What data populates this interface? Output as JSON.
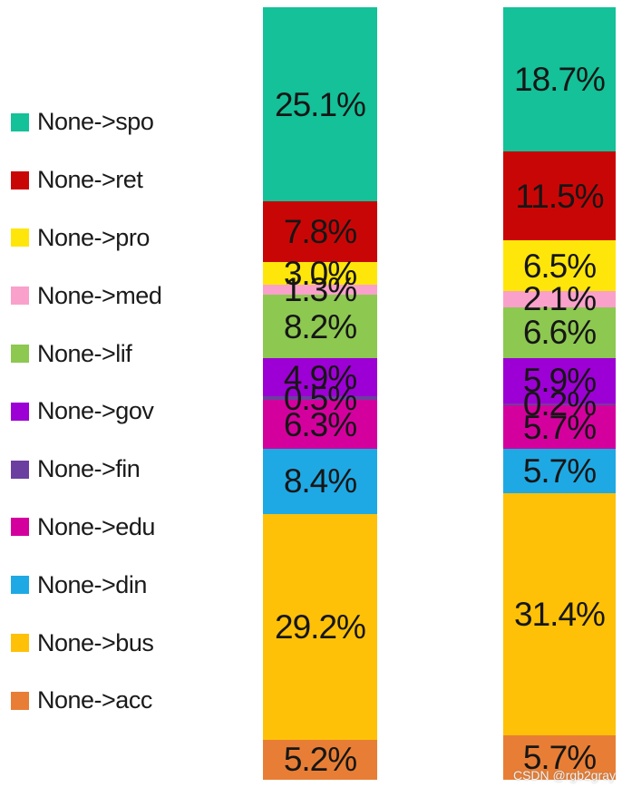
{
  "watermark": {
    "text": "CSDN @rgb2gray"
  },
  "chart_data": {
    "type": "bar",
    "stacked": true,
    "orientation": "vertical",
    "unit": "%",
    "title": "",
    "xlabel": "",
    "ylabel": "",
    "axes_visible": false,
    "grid": false,
    "legend_position": "left",
    "stack_order": "top-to-bottom as listed",
    "categories": [
      "left-bar",
      "right-bar"
    ],
    "series": [
      {
        "name": "None->spo",
        "color": "#14C198",
        "values": [
          25.1,
          18.7
        ],
        "labels": [
          "25.1%",
          "18.7%"
        ]
      },
      {
        "name": "None->ret",
        "color": "#C90606",
        "values": [
          7.8,
          11.5
        ],
        "labels": [
          "7.8%",
          "11.5%"
        ]
      },
      {
        "name": "None->pro",
        "color": "#FFE60A",
        "values": [
          3.0,
          6.5
        ],
        "labels": [
          "3.0%",
          "6.5%"
        ]
      },
      {
        "name": "None->med",
        "color": "#F9A1CB",
        "values": [
          1.3,
          2.1
        ],
        "labels": [
          "1.3%",
          "2.1%"
        ]
      },
      {
        "name": "None->lif",
        "color": "#8DC851",
        "values": [
          8.2,
          6.6
        ],
        "labels": [
          "8.2%",
          "6.6%"
        ]
      },
      {
        "name": "None->gov",
        "color": "#9C00D4",
        "values": [
          4.9,
          5.9
        ],
        "labels": [
          "4.9%",
          "5.9%"
        ]
      },
      {
        "name": "None->fin",
        "color": "#6B3FA0",
        "values": [
          0.5,
          0.2
        ],
        "labels": [
          "0.5%",
          "0.2%"
        ]
      },
      {
        "name": "None->edu",
        "color": "#D4009E",
        "values": [
          6.3,
          5.7
        ],
        "labels": [
          "6.3%",
          "5.7%"
        ]
      },
      {
        "name": "None->din",
        "color": "#1FA9E4",
        "values": [
          8.4,
          5.7
        ],
        "labels": [
          "8.4%",
          "5.7%"
        ]
      },
      {
        "name": "None->bus",
        "color": "#FEC107",
        "values": [
          29.2,
          31.4
        ],
        "labels": [
          "29.2%",
          "31.4%"
        ]
      },
      {
        "name": "None->acc",
        "color": "#E87E35",
        "values": [
          5.2,
          5.7
        ],
        "labels": [
          "5.2%",
          "5.7%"
        ]
      }
    ],
    "text_color": "#161616",
    "background": "#ffffff"
  }
}
